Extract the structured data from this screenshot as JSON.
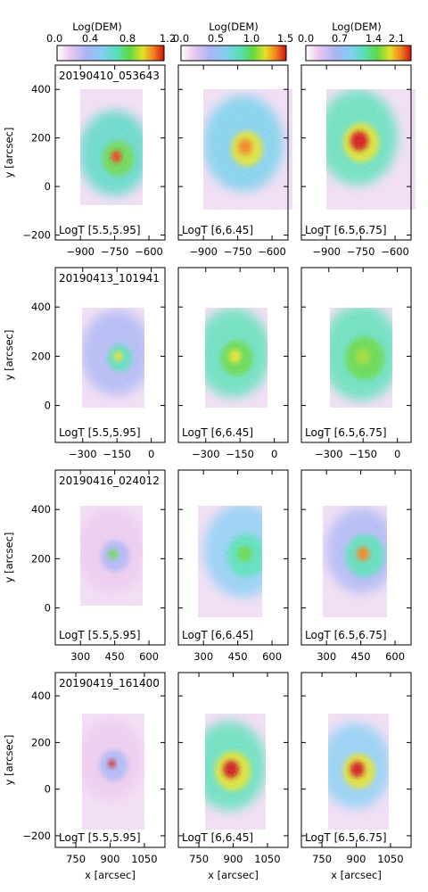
{
  "colorbars": [
    {
      "title": "Log(DEM)",
      "ticks": [
        "0.0",
        "0.4",
        "0.8",
        "1.2"
      ],
      "range": [
        0,
        1.2
      ]
    },
    {
      "title": "Log(DEM)",
      "ticks": [
        "0.0",
        "0.5",
        "1.0",
        "1.5"
      ],
      "range": [
        0,
        1.5
      ]
    },
    {
      "title": "Log(DEM)",
      "ticks": [
        "0.0",
        "0.7",
        "1.4",
        "2.1"
      ],
      "range": [
        0,
        2.1
      ]
    }
  ],
  "columns": [
    {
      "temp_label": "LogT [5.5,5.95]"
    },
    {
      "temp_label": "LogT [6,6.45]"
    },
    {
      "temp_label": "LogT [6.5,6.75]"
    }
  ],
  "rows": [
    {
      "date": "20190410_053643",
      "xlim": [
        -1010,
        -530
      ],
      "ylim": [
        -220,
        500
      ],
      "xticks": [
        -900,
        -750,
        -600
      ],
      "yticks": [
        -200,
        0,
        200,
        400
      ],
      "xtick_labels": [
        "−900",
        "−750",
        "−600"
      ],
      "ytick_labels": [
        "−200",
        "0",
        "200",
        "400"
      ],
      "ylabel": "y [arcsec]",
      "xlabel": ""
    },
    {
      "date": "20190413_101941",
      "xlim": [
        -420,
        60
      ],
      "ylim": [
        -150,
        560
      ],
      "xticks": [
        -300,
        -150,
        0
      ],
      "yticks": [
        0,
        200,
        400
      ],
      "xtick_labels": [
        "−300",
        "−150",
        "0"
      ],
      "ytick_labels": [
        "0",
        "200",
        "400"
      ],
      "ylabel": "y [arcsec]",
      "xlabel": ""
    },
    {
      "date": "20190416_024012",
      "xlim": [
        190,
        670
      ],
      "ylim": [
        -150,
        560
      ],
      "xticks": [
        300,
        450,
        600
      ],
      "yticks": [
        0,
        200,
        400
      ],
      "xtick_labels": [
        "300",
        "450",
        "600"
      ],
      "ytick_labels": [
        "0",
        "200",
        "400"
      ],
      "ylabel": "y [arcsec]",
      "xlabel": ""
    },
    {
      "date": "20190419_161400",
      "xlim": [
        660,
        1140
      ],
      "ylim": [
        -250,
        500
      ],
      "xticks": [
        750,
        900,
        1050
      ],
      "yticks": [
        -200,
        0,
        200,
        400
      ],
      "xtick_labels": [
        "750",
        "900",
        "1050"
      ],
      "ytick_labels": [
        "−200",
        "0",
        "200",
        "400"
      ],
      "ylabel": "y [arcsec]",
      "xlabel": "x [arcsec]"
    }
  ]
}
